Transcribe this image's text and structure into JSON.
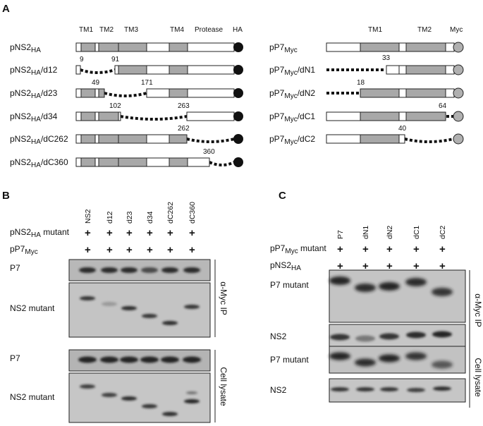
{
  "panels": {
    "a": "A",
    "b": "B",
    "c": "C"
  },
  "panel_a": {
    "ns2": {
      "domains": [
        "TM1",
        "TM2",
        "TM3",
        "TM4",
        "Protease",
        "HA"
      ],
      "constructs": [
        {
          "prefix": "pNS2",
          "sub": "HA",
          "suffix": "",
          "numbers": []
        },
        {
          "prefix": "pNS2",
          "sub": "HA",
          "suffix": "/d12",
          "numbers": [
            "9",
            "91"
          ]
        },
        {
          "prefix": "pNS2",
          "sub": "HA",
          "suffix": "/d23",
          "numbers": [
            "49",
            "171"
          ]
        },
        {
          "prefix": "pNS2",
          "sub": "HA",
          "suffix": "/d34",
          "numbers": [
            "102",
            "263"
          ]
        },
        {
          "prefix": "pNS2",
          "sub": "HA",
          "suffix": "/dC262",
          "numbers": [
            "262"
          ]
        },
        {
          "prefix": "pNS2",
          "sub": "HA",
          "suffix": "/dC360",
          "numbers": [
            "360"
          ]
        }
      ]
    },
    "p7": {
      "domains": [
        "TM1",
        "TM2",
        "Myc"
      ],
      "constructs": [
        {
          "prefix": "pP7",
          "sub": "Myc",
          "suffix": "",
          "numbers": []
        },
        {
          "prefix": "pP7",
          "sub": "Myc",
          "suffix": "/dN1",
          "numbers": [
            "33"
          ]
        },
        {
          "prefix": "pP7",
          "sub": "Myc",
          "suffix": "/dN2",
          "numbers": [
            "18"
          ]
        },
        {
          "prefix": "pP7",
          "sub": "Myc",
          "suffix": "/dC1",
          "numbers": [
            "64"
          ]
        },
        {
          "prefix": "pP7",
          "sub": "Myc",
          "suffix": "/dC2",
          "numbers": [
            "40"
          ]
        }
      ]
    }
  },
  "panel_b": {
    "lanes": [
      "NS2",
      "d12",
      "d23",
      "d34",
      "dC262",
      "dC360"
    ],
    "row1": {
      "prefix": "pNS2",
      "sub": "HA",
      "suffix": " mutant"
    },
    "row2": {
      "prefix": "pP7",
      "sub": "Myc",
      "suffix": ""
    },
    "plus": "+",
    "blot_labels": [
      "P7",
      "NS2 mutant",
      "P7",
      "NS2 mutant"
    ],
    "section_labels": [
      "α-Myc IP",
      "Cell lysate"
    ]
  },
  "panel_c": {
    "lanes": [
      "P7",
      "dN1",
      "dN2",
      "dC1",
      "dC2"
    ],
    "row1": {
      "prefix": "pP7",
      "sub": "Myc",
      "suffix": " mutant"
    },
    "row2": {
      "prefix": "pNS2",
      "sub": "HA",
      "suffix": ""
    },
    "plus": "+",
    "blot_labels": [
      "P7 mutant",
      "NS2",
      "P7 mutant",
      "NS2"
    ],
    "section_labels": [
      "α-Myc IP",
      "Cell lysate"
    ]
  }
}
